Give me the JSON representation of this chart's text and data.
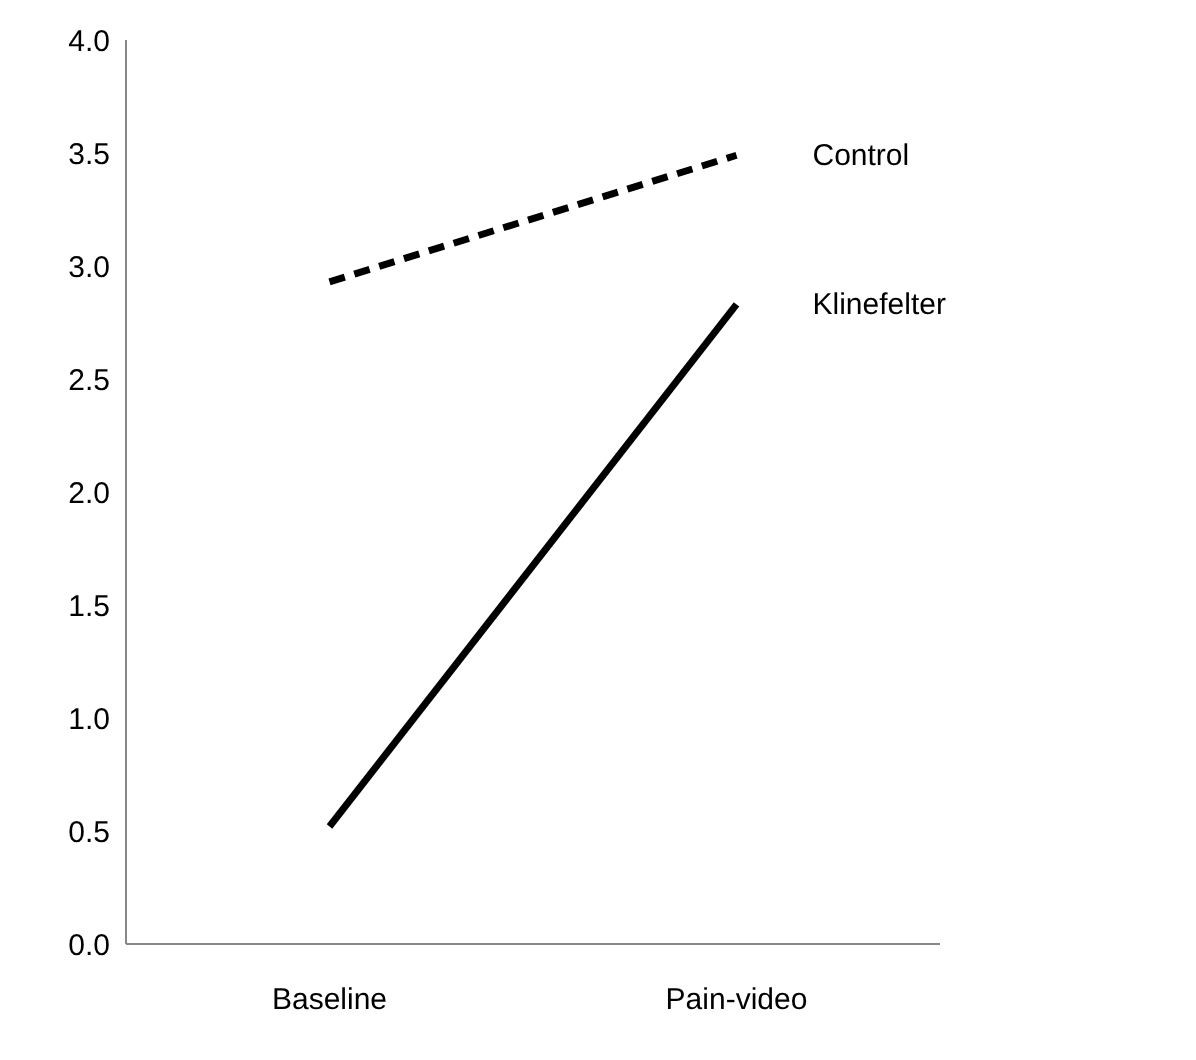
{
  "chart_data": {
    "type": "line",
    "categories": [
      "Baseline",
      "Pain-video"
    ],
    "series": [
      {
        "name": "Control",
        "color": "#000000",
        "values": [
          2.93,
          3.49
        ],
        "line_style": "dashed"
      },
      {
        "name": "Klinefelter",
        "color": "#000000",
        "values": [
          0.52,
          2.83
        ],
        "line_style": "solid"
      }
    ],
    "ylim": [
      0,
      4
    ],
    "yticks": [
      {
        "value": 0,
        "label": "0.0"
      },
      {
        "value": 0.5,
        "label": "0.5"
      },
      {
        "value": 1,
        "label": "1.0"
      },
      {
        "value": 1.5,
        "label": "1.5"
      },
      {
        "value": 2,
        "label": "2.0"
      },
      {
        "value": 2.5,
        "label": "2.5"
      },
      {
        "value": 3,
        "label": "3.0"
      },
      {
        "value": 3.5,
        "label": "3.5"
      },
      {
        "value": 4,
        "label": "4.0"
      }
    ],
    "grid": false,
    "legend": false,
    "marker": "none"
  }
}
